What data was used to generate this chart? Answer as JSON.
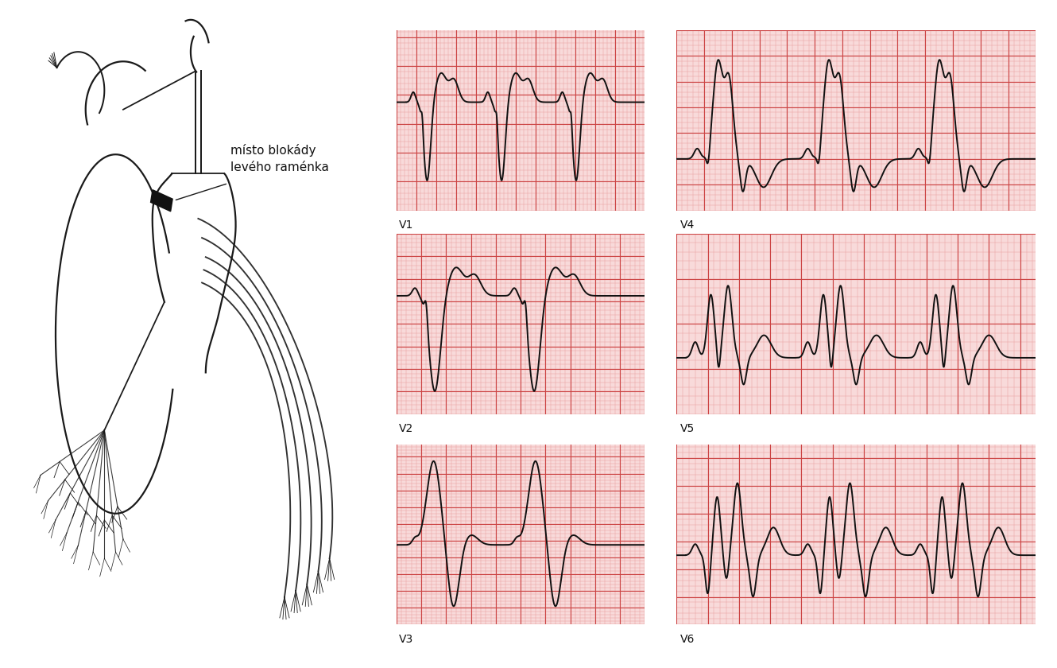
{
  "bg_color": "#ffffff",
  "grid_color_major": "#cc4444",
  "grid_color_minor": "#e8a0a0",
  "ecg_color": "#111111",
  "label_fontsize": 10,
  "annotation_text": "místo blokády\nlevého raménka",
  "panel_bg": "#f8dada",
  "lc": "#1a1a1a",
  "lw_main": 1.6,
  "panel_positions": {
    "V1": [
      0.375,
      0.685,
      0.235,
      0.27
    ],
    "V2": [
      0.375,
      0.38,
      0.235,
      0.27
    ],
    "V3": [
      0.375,
      0.065,
      0.235,
      0.27
    ],
    "V4": [
      0.64,
      0.685,
      0.34,
      0.27
    ],
    "V5": [
      0.64,
      0.38,
      0.34,
      0.27
    ],
    "V6": [
      0.64,
      0.065,
      0.34,
      0.27
    ]
  }
}
